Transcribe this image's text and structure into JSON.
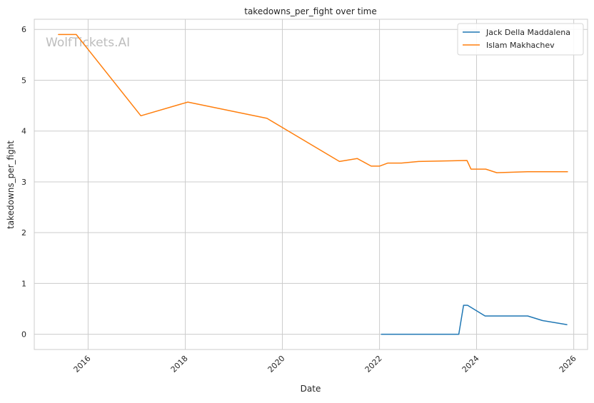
{
  "chart_data": {
    "type": "line",
    "title": "takedowns_per_fight over time",
    "xlabel": "Date",
    "ylabel": "takedowns_per_fight",
    "watermark": "WolfTickets.AI",
    "x_ticks": [
      "2016",
      "2018",
      "2020",
      "2022",
      "2024",
      "2026"
    ],
    "y_ticks": [
      "0",
      "1",
      "2",
      "3",
      "4",
      "5",
      "6"
    ],
    "xlim": [
      "2014-11-22",
      "2026-04-15"
    ],
    "ylim": [
      -0.3,
      6.2
    ],
    "grid": true,
    "legend_position": "top-right",
    "series": [
      {
        "name": "Jack Della Maddalena",
        "color": "#1f77b4",
        "points": [
          [
            "2022-01-15",
            0.0
          ],
          [
            "2023-08-20",
            0.0
          ],
          [
            "2023-09-25",
            0.57
          ],
          [
            "2023-10-25",
            0.57
          ],
          [
            "2024-03-05",
            0.36
          ],
          [
            "2025-01-20",
            0.36
          ],
          [
            "2025-05-10",
            0.27
          ],
          [
            "2025-11-10",
            0.19
          ]
        ]
      },
      {
        "name": "Islam Makhachev",
        "color": "#ff7f0e",
        "points": [
          [
            "2015-05-23",
            5.9
          ],
          [
            "2015-10-04",
            5.9
          ],
          [
            "2017-02-01",
            4.3
          ],
          [
            "2018-01-20",
            4.57
          ],
          [
            "2019-09-07",
            4.25
          ],
          [
            "2021-03-06",
            3.4
          ],
          [
            "2021-07-17",
            3.46
          ],
          [
            "2021-10-30",
            3.31
          ],
          [
            "2022-01-01",
            3.31
          ],
          [
            "2022-03-05",
            3.37
          ],
          [
            "2022-06-15",
            3.37
          ],
          [
            "2022-10-22",
            3.4
          ],
          [
            "2023-10-21",
            3.42
          ],
          [
            "2023-11-20",
            3.25
          ],
          [
            "2024-03-10",
            3.25
          ],
          [
            "2024-06-01",
            3.18
          ],
          [
            "2025-01-18",
            3.2
          ],
          [
            "2025-11-15",
            3.2
          ]
        ]
      }
    ]
  }
}
